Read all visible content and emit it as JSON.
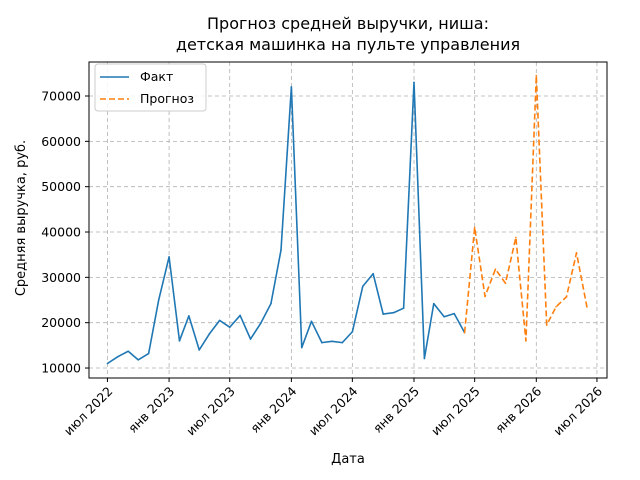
{
  "chart_data": {
    "type": "line",
    "title_line1": "Прогноз средней выручки, ниша:",
    "title_line2": "детская машинка на пульте управления",
    "xlabel": "Дата",
    "ylabel": "Средняя выручка, руб.",
    "ylim": [
      7800,
      77500
    ],
    "yticks": [
      10000,
      20000,
      30000,
      40000,
      50000,
      60000,
      70000
    ],
    "ytick_labels": [
      "10000",
      "20000",
      "30000",
      "40000",
      "50000",
      "60000",
      "70000"
    ],
    "xlim": [
      "2022-05-07",
      "2026-07-31"
    ],
    "xticks": [
      "2022-07-01",
      "2023-01-01",
      "2023-07-01",
      "2024-01-01",
      "2024-07-01",
      "2025-01-01",
      "2025-07-01",
      "2026-01-01",
      "2026-07-01"
    ],
    "xtick_labels": [
      "июл 2022",
      "янв 2023",
      "июл 2023",
      "янв 2024",
      "июл 2024",
      "янв 2025",
      "июл 2025",
      "янв 2026",
      "июл 2026"
    ],
    "grid": true,
    "legend_position": "top-left",
    "series": [
      {
        "name": "Факт",
        "color": "#1f77b4",
        "style": "solid",
        "x": [
          "2022-07-01",
          "2022-08-01",
          "2022-09-01",
          "2022-10-01",
          "2022-11-01",
          "2022-12-01",
          "2023-01-01",
          "2023-02-01",
          "2023-03-01",
          "2023-04-01",
          "2023-05-01",
          "2023-06-01",
          "2023-07-01",
          "2023-08-01",
          "2023-09-01",
          "2023-10-01",
          "2023-11-01",
          "2023-12-01",
          "2024-01-01",
          "2024-02-01",
          "2024-03-01",
          "2024-04-01",
          "2024-05-01",
          "2024-06-01",
          "2024-07-01",
          "2024-08-01",
          "2024-09-01",
          "2024-10-01",
          "2024-11-01",
          "2024-12-01",
          "2025-01-01",
          "2025-02-01",
          "2025-03-01",
          "2025-04-01",
          "2025-05-01",
          "2025-06-01"
        ],
        "values": [
          11000,
          12500,
          13700,
          11800,
          13200,
          25000,
          34500,
          16000,
          21500,
          14000,
          17500,
          20500,
          19000,
          21600,
          16400,
          19800,
          24200,
          36000,
          72000,
          14500,
          20300,
          15600,
          15900,
          15600,
          18000,
          28000,
          30800,
          21900,
          22200,
          23200,
          73000,
          12100,
          24200,
          21300,
          22000,
          17800
        ]
      },
      {
        "name": "Прогноз",
        "color": "#ff7f0e",
        "style": "dashed",
        "x": [
          "2025-06-01",
          "2025-07-01",
          "2025-08-01",
          "2025-09-01",
          "2025-10-01",
          "2025-11-01",
          "2025-12-01",
          "2026-01-01",
          "2026-02-01",
          "2026-03-01",
          "2026-04-01",
          "2026-05-01",
          "2026-06-01"
        ],
        "values": [
          17800,
          41000,
          25800,
          31800,
          28700,
          38800,
          16000,
          74500,
          19500,
          23500,
          25700,
          35400,
          23500
        ]
      }
    ]
  }
}
